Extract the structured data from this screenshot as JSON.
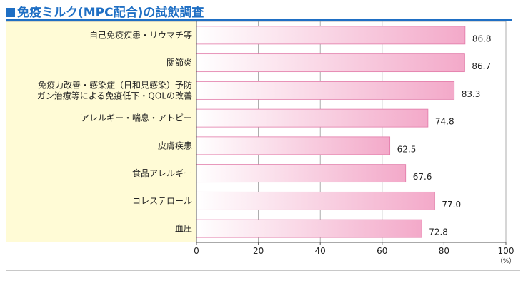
{
  "header": {
    "title": "免疫ミルク(MPC配合)の試飲調査"
  },
  "colors": {
    "accent": "#1f6fc4",
    "label_panel": "#fffbd6",
    "bar_start": "#ffffff",
    "bar_end": "#f3a9c9",
    "bar_border": "#e27aa8"
  },
  "chart_data": {
    "type": "bar",
    "orientation": "horizontal",
    "title": "免疫ミルク(MPC配合)の試飲調査",
    "categories": [
      [
        "自己免疫疾患・リウマチ等"
      ],
      [
        "関節炎"
      ],
      [
        "免疫力改善・感染症（日和見感染）予防",
        "ガン治療等による免疫低下・QOLの改善"
      ],
      [
        "アレルギー・喘息・アトピー"
      ],
      [
        "皮膚疾患"
      ],
      [
        "食品アレルギー"
      ],
      [
        "コレステロール"
      ],
      [
        "血圧"
      ]
    ],
    "values": [
      86.8,
      86.7,
      83.3,
      74.8,
      62.5,
      67.6,
      77.0,
      72.8
    ],
    "value_labels": [
      "86.8",
      "86.7",
      "83.3",
      "74.8",
      "62.5",
      "67.6",
      "77.0",
      "72.8"
    ],
    "xlim": [
      0,
      100
    ],
    "xticks": [
      0,
      20,
      40,
      60,
      80,
      100
    ],
    "xunit": "（%）",
    "grid": true
  }
}
